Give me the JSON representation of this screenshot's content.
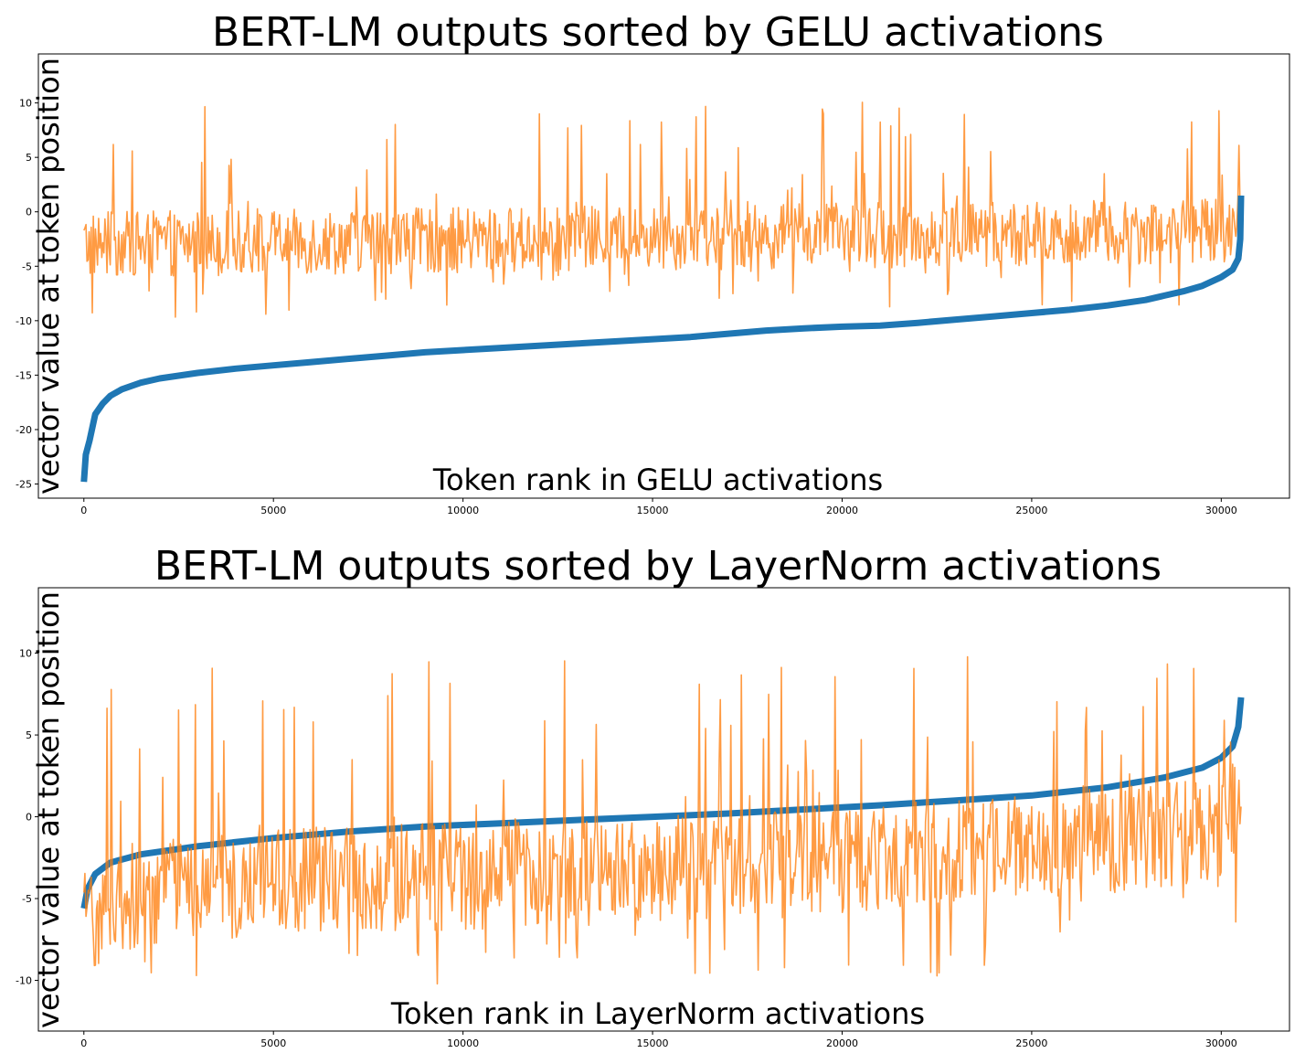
{
  "chart_data": [
    {
      "type": "line",
      "title": "BERT-LM outputs sorted by GELU activations",
      "xlabel": "Token rank in GELU activations",
      "ylabel": "vector value at token position",
      "xlim": [
        -1200,
        31800
      ],
      "ylim": [
        -26.3,
        14.5
      ],
      "x_ticks": [
        0,
        5000,
        10000,
        15000,
        20000,
        25000,
        30000
      ],
      "y_ticks": [
        -25,
        -20,
        -15,
        -10,
        -5,
        0,
        5,
        10
      ],
      "grid": false,
      "series": [
        {
          "color": "#1f77b4",
          "x": [
            0,
            50,
            150,
            300,
            500,
            700,
            1000,
            1500,
            2000,
            3000,
            4000,
            5000,
            6000,
            7000,
            8000,
            9000,
            10000,
            11000,
            12000,
            13000,
            14000,
            15000,
            16000,
            17000,
            18000,
            19000,
            20000,
            21000,
            22000,
            23000,
            24000,
            25000,
            26000,
            27000,
            28000,
            28500,
            29000,
            29500,
            30000,
            30300,
            30450,
            30500,
            30522
          ],
          "y": [
            -24.8,
            -22.3,
            -21.0,
            -18.6,
            -17.6,
            -16.9,
            -16.3,
            -15.7,
            -15.3,
            -14.8,
            -14.4,
            -14.1,
            -13.8,
            -13.5,
            -13.2,
            -12.9,
            -12.7,
            -12.5,
            -12.3,
            -12.1,
            -11.9,
            -11.7,
            -11.5,
            -11.2,
            -10.9,
            -10.7,
            -10.55,
            -10.45,
            -10.2,
            -9.9,
            -9.6,
            -9.3,
            -9.0,
            -8.6,
            -8.1,
            -7.7,
            -7.3,
            -6.8,
            -6.0,
            -5.3,
            -4.3,
            -2.5,
            1.5
          ]
        },
        {
          "color": "#ff7f0e",
          "band_x": [
            0,
            5000,
            10000,
            15000,
            20000,
            25000,
            30000,
            30522
          ],
          "band_center": [
            -3.0,
            -2.8,
            -2.6,
            -2.4,
            -2.2,
            -2.0,
            -1.7,
            -1.5
          ],
          "band_halfwidth": 3.0,
          "peak_max": 12.8,
          "trough_min": -11.6
        }
      ]
    },
    {
      "type": "line",
      "title": "BERT-LM outputs sorted by LayerNorm activations",
      "xlabel": "Token rank in LayerNorm activations",
      "ylabel": "vector value at token position",
      "xlim": [
        -1200,
        31800
      ],
      "ylim": [
        -13.1,
        14.0
      ],
      "x_ticks": [
        0,
        5000,
        10000,
        15000,
        20000,
        25000,
        30000
      ],
      "y_ticks": [
        -10,
        -5,
        0,
        5,
        10
      ],
      "grid": false,
      "series": [
        {
          "color": "#1f77b4",
          "x": [
            0,
            100,
            300,
            700,
            1500,
            3000,
            5000,
            7000,
            9000,
            11000,
            13000,
            15000,
            17000,
            19000,
            21000,
            23000,
            25000,
            27000,
            28500,
            29500,
            30000,
            30300,
            30450,
            30522
          ],
          "y": [
            -5.6,
            -4.4,
            -3.5,
            -2.8,
            -2.3,
            -1.8,
            -1.3,
            -0.9,
            -0.6,
            -0.4,
            -0.2,
            0.0,
            0.2,
            0.45,
            0.7,
            1.0,
            1.3,
            1.8,
            2.4,
            3.0,
            3.6,
            4.3,
            5.5,
            7.3
          ]
        },
        {
          "color": "#ff7f0e",
          "band_x": [
            0,
            1000,
            5000,
            10000,
            15000,
            20000,
            25000,
            28000,
            30000,
            30522
          ],
          "band_center": [
            -6.5,
            -5.0,
            -4.0,
            -3.6,
            -3.2,
            -2.6,
            -1.8,
            -1.2,
            -0.5,
            1.0
          ],
          "band_halfwidth": 3.3,
          "peak_max": 12.8,
          "trough_min": -11.7
        }
      ]
    }
  ]
}
